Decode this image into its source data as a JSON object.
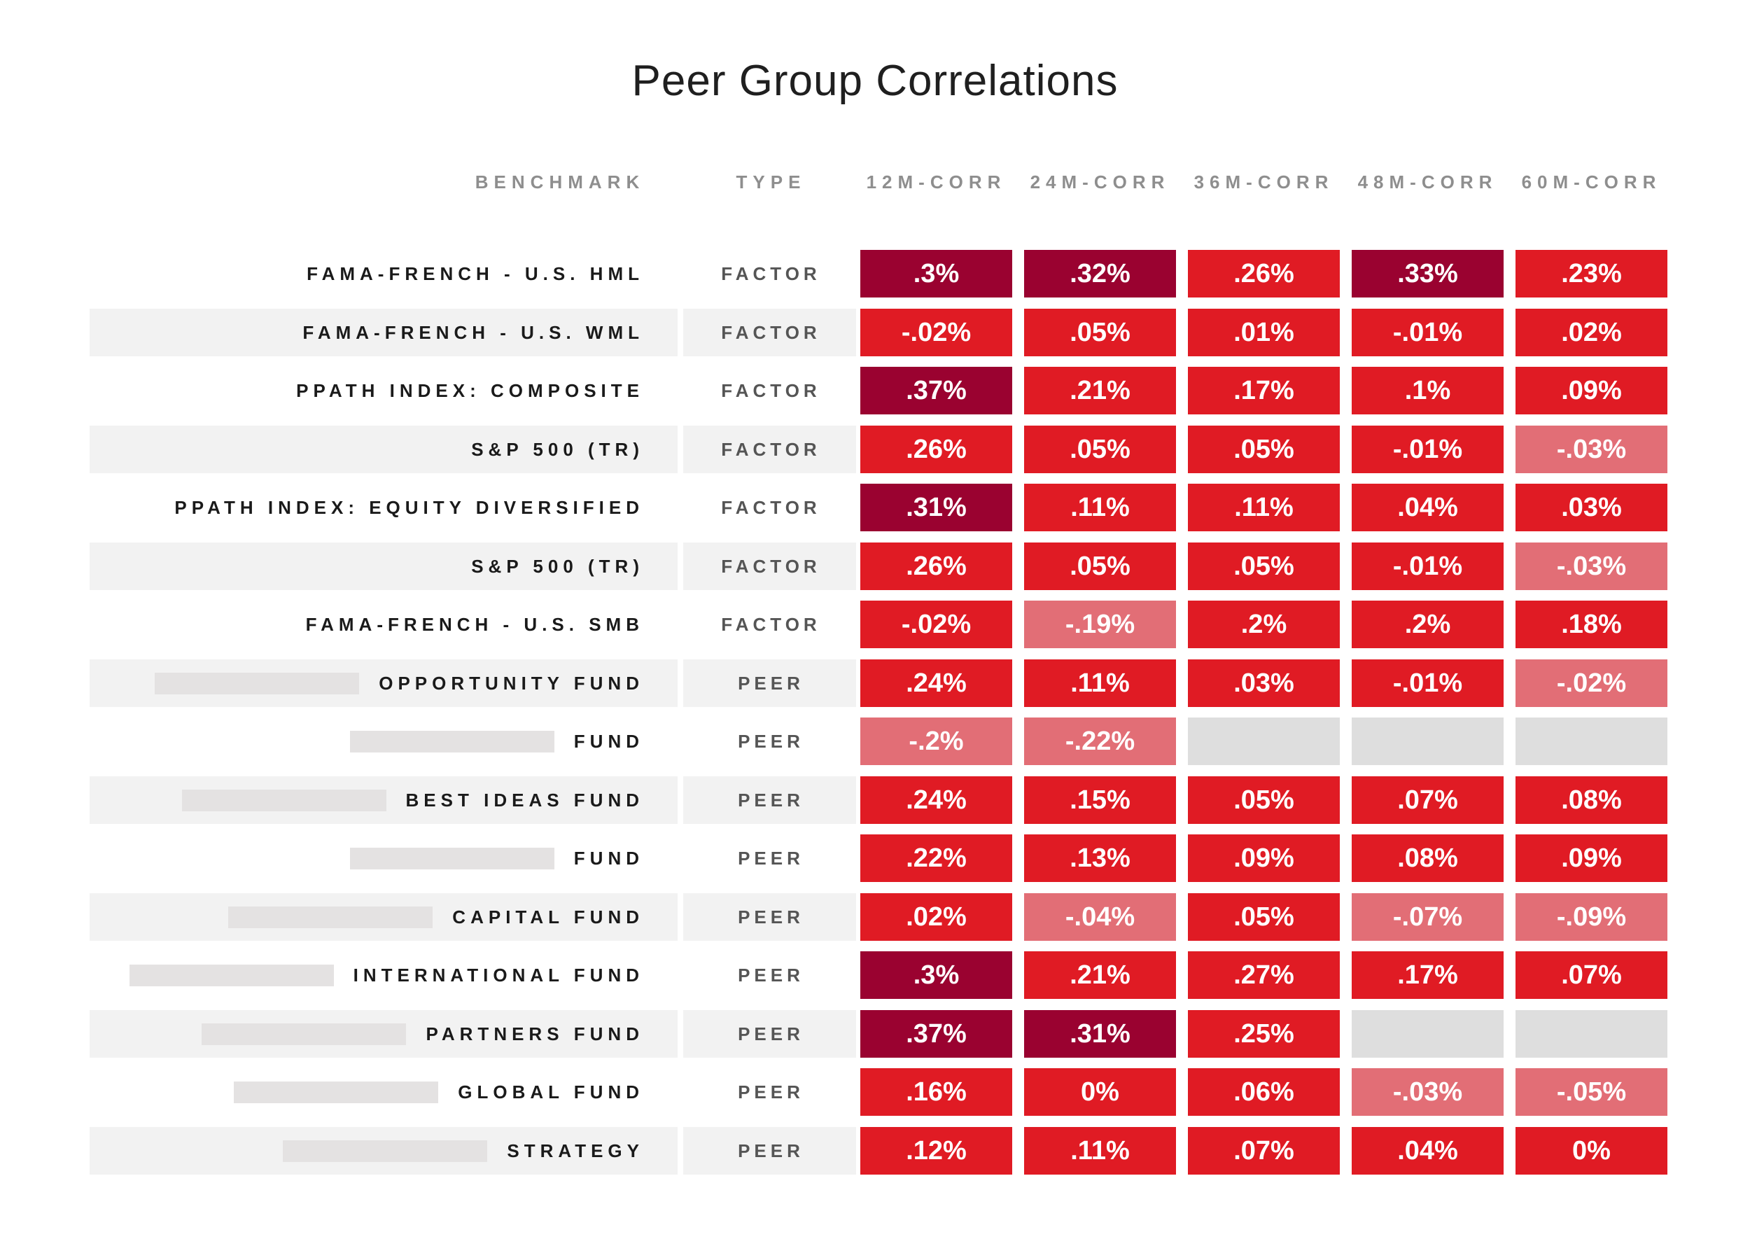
{
  "chart_data": {
    "type": "heatmap",
    "title": "Peer Group Correlations",
    "columns": {
      "benchmark": "BENCHMARK",
      "type": "TYPE",
      "periods": [
        "12M-CORR",
        "24M-CORR",
        "36M-CORR",
        "48M-CORR",
        "60M-CORR"
      ]
    },
    "colors": {
      "dark": "#9a0230",
      "mid": "#e01b24",
      "light": "#e26e76",
      "empty": "#dedede"
    },
    "rows": [
      {
        "benchmark": "FAMA-FRENCH - U.S. HML",
        "type": "FACTOR",
        "redacted": false,
        "values": [
          0.3,
          0.32,
          0.26,
          0.33,
          0.23
        ],
        "labels": [
          ".3%",
          ".32%",
          ".26%",
          ".33%",
          ".23%"
        ],
        "levels": [
          "dark",
          "dark",
          "mid",
          "dark",
          "mid"
        ]
      },
      {
        "benchmark": "FAMA-FRENCH - U.S. WML",
        "type": "FACTOR",
        "redacted": false,
        "values": [
          -0.02,
          0.05,
          0.01,
          -0.01,
          0.02
        ],
        "labels": [
          "-.02%",
          ".05%",
          ".01%",
          "-.01%",
          ".02%"
        ],
        "levels": [
          "mid",
          "mid",
          "mid",
          "mid",
          "mid"
        ]
      },
      {
        "benchmark": "PPATH INDEX: COMPOSITE",
        "type": "FACTOR",
        "redacted": false,
        "values": [
          0.37,
          0.21,
          0.17,
          0.1,
          0.09
        ],
        "labels": [
          ".37%",
          ".21%",
          ".17%",
          ".1%",
          ".09%"
        ],
        "levels": [
          "dark",
          "mid",
          "mid",
          "mid",
          "mid"
        ]
      },
      {
        "benchmark": "S&P 500 (TR)",
        "type": "FACTOR",
        "redacted": false,
        "values": [
          0.26,
          0.05,
          0.05,
          -0.01,
          -0.03
        ],
        "labels": [
          ".26%",
          ".05%",
          ".05%",
          "-.01%",
          "-.03%"
        ],
        "levels": [
          "mid",
          "mid",
          "mid",
          "mid",
          "light"
        ]
      },
      {
        "benchmark": "PPATH INDEX: EQUITY DIVERSIFIED",
        "type": "FACTOR",
        "redacted": false,
        "values": [
          0.31,
          0.11,
          0.11,
          0.04,
          0.03
        ],
        "labels": [
          ".31%",
          ".11%",
          ".11%",
          ".04%",
          ".03%"
        ],
        "levels": [
          "dark",
          "mid",
          "mid",
          "mid",
          "mid"
        ]
      },
      {
        "benchmark": "S&P 500 (TR)",
        "type": "FACTOR",
        "redacted": false,
        "values": [
          0.26,
          0.05,
          0.05,
          -0.01,
          -0.03
        ],
        "labels": [
          ".26%",
          ".05%",
          ".05%",
          "-.01%",
          "-.03%"
        ],
        "levels": [
          "mid",
          "mid",
          "mid",
          "mid",
          "light"
        ]
      },
      {
        "benchmark": "FAMA-FRENCH - U.S. SMB",
        "type": "FACTOR",
        "redacted": false,
        "values": [
          -0.02,
          -0.19,
          0.2,
          0.2,
          0.18
        ],
        "labels": [
          "-.02%",
          "-.19%",
          ".2%",
          ".2%",
          ".18%"
        ],
        "levels": [
          "mid",
          "light",
          "mid",
          "mid",
          "mid"
        ]
      },
      {
        "benchmark": "OPPORTUNITY FUND",
        "type": "PEER",
        "redacted": true,
        "values": [
          0.24,
          0.11,
          0.03,
          -0.01,
          -0.02
        ],
        "labels": [
          ".24%",
          ".11%",
          ".03%",
          "-.01%",
          "-.02%"
        ],
        "levels": [
          "mid",
          "mid",
          "mid",
          "mid",
          "light"
        ]
      },
      {
        "benchmark": "FUND",
        "type": "PEER",
        "redacted": true,
        "values": [
          -0.2,
          -0.22,
          null,
          null,
          null
        ],
        "labels": [
          "-.2%",
          "-.22%",
          "",
          "",
          ""
        ],
        "levels": [
          "light",
          "light",
          "empty",
          "empty",
          "empty"
        ]
      },
      {
        "benchmark": "BEST IDEAS FUND",
        "type": "PEER",
        "redacted": true,
        "values": [
          0.24,
          0.15,
          0.05,
          0.07,
          0.08
        ],
        "labels": [
          ".24%",
          ".15%",
          ".05%",
          ".07%",
          ".08%"
        ],
        "levels": [
          "mid",
          "mid",
          "mid",
          "mid",
          "mid"
        ]
      },
      {
        "benchmark": "FUND",
        "type": "PEER",
        "redacted": true,
        "values": [
          0.22,
          0.13,
          0.09,
          0.08,
          0.09
        ],
        "labels": [
          ".22%",
          ".13%",
          ".09%",
          ".08%",
          ".09%"
        ],
        "levels": [
          "mid",
          "mid",
          "mid",
          "mid",
          "mid"
        ]
      },
      {
        "benchmark": "CAPITAL FUND",
        "type": "PEER",
        "redacted": true,
        "values": [
          0.02,
          -0.04,
          0.05,
          -0.07,
          -0.09
        ],
        "labels": [
          ".02%",
          "-.04%",
          ".05%",
          "-.07%",
          "-.09%"
        ],
        "levels": [
          "mid",
          "light",
          "mid",
          "light",
          "light"
        ]
      },
      {
        "benchmark": "INTERNATIONAL FUND",
        "type": "PEER",
        "redacted": true,
        "values": [
          0.3,
          0.21,
          0.27,
          0.17,
          0.07
        ],
        "labels": [
          ".3%",
          ".21%",
          ".27%",
          ".17%",
          ".07%"
        ],
        "levels": [
          "dark",
          "mid",
          "mid",
          "mid",
          "mid"
        ]
      },
      {
        "benchmark": "PARTNERS FUND",
        "type": "PEER",
        "redacted": true,
        "values": [
          0.37,
          0.31,
          0.25,
          null,
          null
        ],
        "labels": [
          ".37%",
          ".31%",
          ".25%",
          "",
          ""
        ],
        "levels": [
          "dark",
          "dark",
          "mid",
          "empty",
          "empty"
        ]
      },
      {
        "benchmark": "GLOBAL FUND",
        "type": "PEER",
        "redacted": true,
        "values": [
          0.16,
          0.0,
          0.06,
          -0.03,
          -0.05
        ],
        "labels": [
          ".16%",
          "0%",
          ".06%",
          "-.03%",
          "-.05%"
        ],
        "levels": [
          "mid",
          "mid",
          "mid",
          "light",
          "light"
        ]
      },
      {
        "benchmark": "STRATEGY",
        "type": "PEER",
        "redacted": true,
        "values": [
          0.12,
          0.11,
          0.07,
          0.04,
          0.0
        ],
        "labels": [
          ".12%",
          ".11%",
          ".07%",
          ".04%",
          "0%"
        ],
        "levels": [
          "mid",
          "mid",
          "mid",
          "mid",
          "mid"
        ]
      }
    ]
  }
}
